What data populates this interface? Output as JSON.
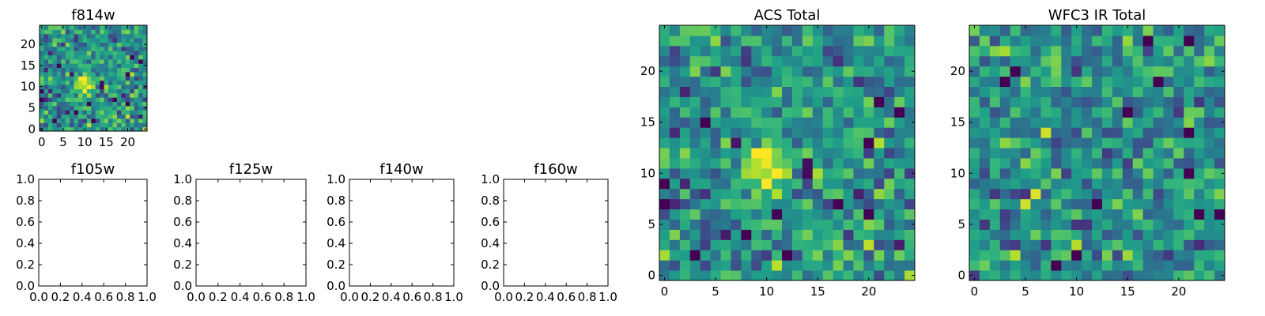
{
  "chart_data": [
    {
      "id": "f814w",
      "type": "heatmap",
      "title": "f814w",
      "grid_size": 25,
      "xlim": [
        -0.5,
        24.5
      ],
      "ylim": [
        -0.5,
        24.5
      ],
      "xticks": [
        "0",
        "5",
        "10",
        "15",
        "20"
      ],
      "yticks": [
        "0",
        "5",
        "10",
        "15",
        "20"
      ],
      "source_peak": [
        10,
        11
      ],
      "peak_amplitude": 0.55,
      "noise_seed": 7,
      "colormap": "viridis"
    },
    {
      "id": "f105w",
      "type": "empty",
      "title": "f105w",
      "xlim": [
        0,
        1
      ],
      "ylim": [
        0,
        1
      ],
      "xticks": [
        "0.0",
        "0.2",
        "0.4",
        "0.6",
        "0.8",
        "1.0"
      ],
      "yticks": [
        "0.0",
        "0.2",
        "0.4",
        "0.6",
        "0.8",
        "1.0"
      ]
    },
    {
      "id": "f125w",
      "type": "empty",
      "title": "f125w",
      "xlim": [
        0,
        1
      ],
      "ylim": [
        0,
        1
      ],
      "xticks": [
        "0.0",
        "0.2",
        "0.4",
        "0.6",
        "0.8",
        "1.0"
      ],
      "yticks": [
        "0.0",
        "0.2",
        "0.4",
        "0.6",
        "0.8",
        "1.0"
      ]
    },
    {
      "id": "f140w",
      "type": "empty",
      "title": "f140w",
      "xlim": [
        0,
        1
      ],
      "ylim": [
        0,
        1
      ],
      "xticks": [
        "0.0",
        "0.2",
        "0.4",
        "0.6",
        "0.8",
        "1.0"
      ],
      "yticks": [
        "0.0",
        "0.2",
        "0.4",
        "0.6",
        "0.8",
        "1.0"
      ]
    },
    {
      "id": "f160w",
      "type": "empty",
      "title": "f160w",
      "xlim": [
        0,
        1
      ],
      "ylim": [
        0,
        1
      ],
      "xticks": [
        "0.0",
        "0.2",
        "0.4",
        "0.6",
        "0.8",
        "1.0"
      ],
      "yticks": [
        "0.0",
        "0.2",
        "0.4",
        "0.6",
        "0.8",
        "1.0"
      ]
    },
    {
      "id": "acs",
      "type": "heatmap",
      "title": "ACS Total",
      "grid_size": 25,
      "xlim": [
        -0.5,
        24.5
      ],
      "ylim": [
        -0.5,
        24.5
      ],
      "xticks": [
        "0",
        "5",
        "10",
        "15",
        "20"
      ],
      "yticks": [
        "0",
        "5",
        "10",
        "15",
        "20"
      ],
      "source_peak": [
        10,
        11
      ],
      "peak_amplitude": 0.55,
      "noise_seed": 7,
      "colormap": "viridis"
    },
    {
      "id": "wfc3",
      "type": "heatmap",
      "title": "WFC3 IR Total",
      "grid_size": 25,
      "xlim": [
        -0.5,
        24.5
      ],
      "ylim": [
        -0.5,
        24.5
      ],
      "xticks": [
        "0",
        "5",
        "10",
        "15",
        "20"
      ],
      "yticks": [
        "0",
        "5",
        "10",
        "15",
        "20"
      ],
      "source_peak": null,
      "peak_amplitude": 0,
      "noise_seed": 31,
      "colormap": "viridis"
    }
  ]
}
